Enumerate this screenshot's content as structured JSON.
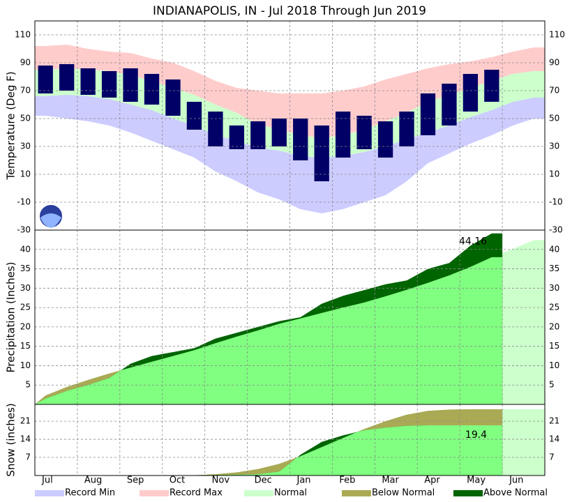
{
  "chart_data": [
    {
      "type": "temperature",
      "title": "INDIANAPOLIS, IN - Jul 2018 Through Jun 2019",
      "ylabel": "Temperature (Deg F)",
      "ylim": [
        -30,
        120
      ],
      "yticks": [
        -30,
        -10,
        10,
        30,
        50,
        70,
        90,
        110
      ],
      "record_max": [
        102,
        103,
        100,
        98,
        97,
        93,
        90,
        84,
        77,
        72,
        70,
        68,
        68,
        68,
        70,
        73,
        78,
        82,
        86,
        89,
        91,
        94,
        98,
        101
      ],
      "normal_high": [
        85,
        86,
        85,
        84,
        81,
        77,
        72,
        67,
        60,
        54,
        46,
        42,
        38,
        36,
        38,
        42,
        48,
        54,
        62,
        67,
        72,
        77,
        82,
        84
      ],
      "normal_low": [
        66,
        67,
        66,
        64,
        60,
        56,
        50,
        45,
        38,
        34,
        29,
        27,
        23,
        22,
        23,
        26,
        30,
        35,
        40,
        45,
        51,
        56,
        62,
        65
      ],
      "record_min": [
        52,
        50,
        48,
        45,
        40,
        34,
        28,
        22,
        12,
        5,
        -3,
        -8,
        -15,
        -18,
        -15,
        -10,
        -5,
        5,
        18,
        25,
        32,
        38,
        45,
        50
      ],
      "observed_high": [
        88,
        89,
        86,
        84,
        86,
        82,
        78,
        62,
        55,
        45,
        48,
        50,
        50,
        45,
        55,
        52,
        48,
        55,
        68,
        75,
        82,
        85,
        null,
        null
      ],
      "observed_low": [
        68,
        70,
        67,
        65,
        62,
        60,
        52,
        42,
        30,
        28,
        28,
        30,
        20,
        5,
        22,
        28,
        22,
        30,
        38,
        45,
        55,
        62,
        null,
        null
      ],
      "colors": {
        "record_max": "#ffcccc",
        "normal": "#ccffcc",
        "record_min": "#ccccff",
        "observed": "#000066"
      }
    },
    {
      "type": "cumulative",
      "ylabel": "Precipitation (Inches)",
      "ylim": [
        0,
        45
      ],
      "yticks": [
        5,
        10,
        15,
        20,
        25,
        30,
        35,
        40
      ],
      "normal": [
        2.3,
        4.5,
        6.3,
        8,
        9.5,
        11,
        12.5,
        14,
        15.8,
        17.5,
        19.1,
        20.8,
        22.2,
        23.6,
        25,
        26.3,
        27.9,
        29.6,
        31.4,
        33.3,
        35.5,
        38,
        40.2,
        42.4
      ],
      "observed": [
        1.5,
        3.5,
        5,
        6.8,
        10.5,
        12.5,
        13.5,
        14.5,
        17,
        18.5,
        20,
        21.5,
        22.5,
        26,
        28,
        29.5,
        31,
        32,
        35,
        36.5,
        41,
        44.16,
        null,
        null
      ],
      "colors": {
        "normal": "#ccffcc",
        "normal_to_date": "#80ff80",
        "below": "#aaaa55",
        "above": "#006400"
      }
    },
    {
      "type": "cumulative",
      "ylabel": "Snow (inches)",
      "ylim": [
        0,
        27.5
      ],
      "yticks": [
        7,
        14,
        21
      ],
      "categories": [
        "Jul",
        "Aug",
        "Sep",
        "Oct",
        "Nov",
        "Dec",
        "Jan",
        "Feb",
        "Mar",
        "Apr",
        "May",
        "Jun"
      ],
      "normal": [
        0,
        0,
        0,
        0,
        0,
        0,
        0,
        0.1,
        0.5,
        1.2,
        2.5,
        4.5,
        7.5,
        11,
        14.5,
        18,
        21,
        23.5,
        25,
        25.5,
        25.6,
        25.6,
        25.6,
        25.6
      ],
      "observed": [
        0,
        0,
        0,
        0,
        0,
        0,
        0,
        0,
        0.2,
        0.3,
        0.5,
        1.5,
        8,
        13,
        15.5,
        17.5,
        18.5,
        19.2,
        19.4,
        19.4,
        19.4,
        19.4,
        null,
        null
      ],
      "colors": {
        "normal": "#ccffcc",
        "normal_to_date": "#80ff80",
        "below": "#aaaa55",
        "above": "#006400"
      }
    }
  ],
  "legend": [
    {
      "name": "Record Min",
      "color": "#ccccff"
    },
    {
      "name": "Record Max",
      "color": "#ffcccc"
    },
    {
      "name": "Normal",
      "color": "#ccffcc"
    },
    {
      "name": "Below Normal",
      "color": "#aaaa55"
    },
    {
      "name": "Above Normal",
      "color": "#006400"
    }
  ]
}
